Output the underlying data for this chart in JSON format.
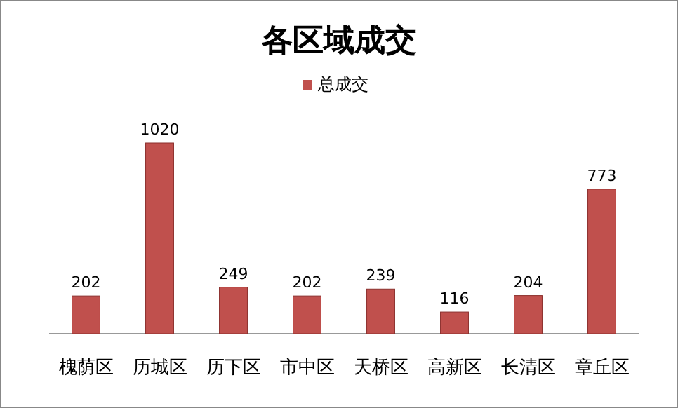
{
  "chart_data": {
    "type": "bar",
    "title": "各区域成交",
    "categories": [
      "槐荫区",
      "历城区",
      "历下区",
      "市中区",
      "天桥区",
      "高新区",
      "长清区",
      "章丘区"
    ],
    "series": [
      {
        "name": "总成交",
        "color": "#c0504d",
        "values": [
          202,
          1020,
          249,
          202,
          239,
          116,
          204,
          773
        ]
      }
    ],
    "data_labels": true,
    "legend": "top"
  }
}
